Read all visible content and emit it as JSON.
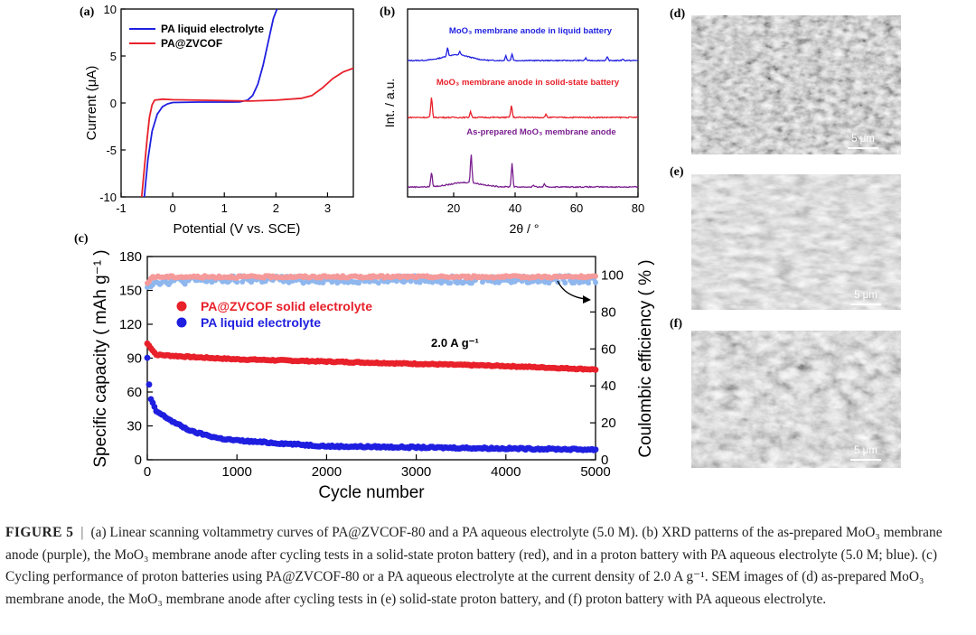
{
  "panels": {
    "a": {
      "letter": "(a)",
      "legend": [
        "PA liquid electrolyte",
        "PA@ZVCOF"
      ],
      "xlabel": "Potential (V vs. SCE)",
      "ylabel": "Current (μA)",
      "xticks": [
        "-1",
        "0",
        "1",
        "2",
        "3"
      ],
      "yticks": [
        "10",
        "5",
        "0",
        "-5",
        "-10"
      ]
    },
    "b": {
      "letter": "(b)",
      "ylabel": "Int. / a.u.",
      "xlabel": "2θ / °",
      "xticks": [
        "20",
        "40",
        "60",
        "80"
      ],
      "labels": [
        "MoO₃ membrane anode in liquid battery",
        "MoO₃ membrane anode in solid-state battery",
        "As-prepared MoO₃ membrane anode"
      ]
    },
    "c": {
      "letter": "(c)",
      "xlabel": "Cycle number",
      "ylabel_left": "Specific capacity ( mAh g⁻¹ )",
      "ylabel_right": "Coulombic efficiency ( % )",
      "legend": [
        "PA@ZVCOF solid electrolyte",
        "PA liquid electrolyte"
      ],
      "annotation": "2.0 A g⁻¹",
      "xticks": [
        "0",
        "1000",
        "2000",
        "3000",
        "4000",
        "5000"
      ],
      "yticks_left": [
        "0",
        "30",
        "60",
        "90",
        "120",
        "150",
        "180"
      ],
      "yticks_right": [
        "0",
        "20",
        "40",
        "60",
        "80",
        "100"
      ]
    },
    "d": {
      "letter": "(d)",
      "scale": "5 μm"
    },
    "e": {
      "letter": "(e)",
      "scale": "5 μm"
    },
    "f": {
      "letter": "(f)",
      "scale": "5 μm"
    }
  },
  "colors": {
    "blue": "#1f1fe0",
    "red": "#e8202a",
    "purple": "#7a1f8f",
    "pink": "#f59a9a",
    "lightblue": "#8fb7ee"
  },
  "caption": {
    "label": "FIGURE 5",
    "sep": "|",
    "text": "(a) Linear scanning voltammetry curves of PA@ZVCOF-80 and a PA aqueous electrolyte (5.0 M). (b) XRD patterns of the as-prepared MoO₃ membrane anode (purple), the MoO₃ membrane anode after cycling tests in a solid-state proton battery (red), and in a proton battery with PA aqueous electrolyte (5.0 M; blue). (c) Cycling performance of proton batteries using PA@ZVCOF-80 or a PA aqueous electrolyte at the current density of 2.0 A g⁻¹. SEM images of (d) as-prepared MoO₃ membrane anode, the MoO₃ membrane anode after cycling tests in (e) solid-state proton battery, and (f) proton battery with PA aqueous electrolyte."
  },
  "chart_data": [
    {
      "type": "line",
      "panel": "a",
      "title": "",
      "xlabel": "Potential (V vs. SCE)",
      "ylabel": "Current (μA)",
      "xlim": [
        -1,
        3.5
      ],
      "ylim": [
        -10,
        10
      ],
      "series": [
        {
          "name": "PA liquid electrolyte",
          "color": "#1f1fe0",
          "x": [
            -0.55,
            -0.48,
            -0.4,
            -0.3,
            -0.2,
            -0.1,
            0.0,
            0.5,
            1.0,
            1.3,
            1.45,
            1.55,
            1.65,
            1.75,
            1.85,
            1.95,
            2.02
          ],
          "y": [
            -10,
            -6,
            -3,
            -1.2,
            -0.4,
            -0.1,
            0.05,
            0.1,
            0.1,
            0.12,
            0.3,
            0.8,
            2.0,
            4.0,
            6.5,
            9.0,
            10
          ]
        },
        {
          "name": "PA@ZVCOF",
          "color": "#e8202a",
          "x": [
            -0.6,
            -0.55,
            -0.5,
            -0.45,
            -0.4,
            -0.35,
            -0.2,
            0.0,
            0.5,
            1.0,
            1.5,
            2.0,
            2.5,
            2.7,
            2.9,
            3.1,
            3.3,
            3.5
          ],
          "y": [
            -10,
            -7,
            -4,
            -1.5,
            -0.2,
            0.3,
            0.4,
            0.35,
            0.3,
            0.25,
            0.2,
            0.3,
            0.5,
            0.8,
            1.6,
            2.6,
            3.3,
            3.7
          ]
        }
      ]
    },
    {
      "type": "line",
      "panel": "b",
      "xlabel": "2θ / °",
      "ylabel": "Int. / a.u.",
      "xlim": [
        5,
        80
      ],
      "series": [
        {
          "name": "MoO₃ membrane anode in liquid battery",
          "color": "#1f1fe0",
          "peaks": [
            [
              18,
              0.5
            ],
            [
              22,
              0.2
            ],
            [
              37,
              0.3
            ],
            [
              39,
              0.4
            ],
            [
              63,
              0.15
            ],
            [
              70,
              0.2
            ],
            [
              75,
              0.1
            ]
          ]
        },
        {
          "name": "MoO₃ membrane anode in solid-state battery",
          "color": "#e8202a",
          "peaks": [
            [
              12.8,
              1.0
            ],
            [
              25.5,
              0.3
            ],
            [
              38.8,
              0.6
            ],
            [
              50,
              0.15
            ]
          ]
        },
        {
          "name": "As-prepared MoO₃ membrane anode",
          "color": "#7a1f8f",
          "peaks": [
            [
              12.8,
              0.8
            ],
            [
              25.7,
              1.6
            ],
            [
              39,
              1.3
            ],
            [
              46,
              0.1
            ],
            [
              49.5,
              0.15
            ]
          ]
        }
      ]
    },
    {
      "type": "scatter",
      "panel": "c",
      "xlabel": "Cycle number",
      "ylabel": "Specific capacity ( mAh g⁻¹ )",
      "ylabel_right": "Coulombic efficiency ( % )",
      "xlim": [
        0,
        5000
      ],
      "ylim": [
        0,
        180
      ],
      "ylim_right": [
        0,
        110
      ],
      "series": [
        {
          "name": "PA@ZVCOF solid electrolyte",
          "axis": "left",
          "color": "#e8202a",
          "x": [
            0,
            100,
            500,
            1000,
            2000,
            3000,
            4000,
            5000
          ],
          "y": [
            103,
            93,
            91,
            89,
            87,
            85,
            83,
            80
          ]
        },
        {
          "name": "PA liquid electrolyte",
          "axis": "left",
          "color": "#1f1fe0",
          "x": [
            0,
            30,
            100,
            300,
            500,
            800,
            1000,
            2000,
            3000,
            4000,
            5000
          ],
          "y": [
            90,
            55,
            43,
            33,
            25,
            19,
            17,
            12,
            11,
            10,
            9
          ]
        },
        {
          "name": "PA@ZVCOF coulombic efficiency",
          "axis": "right",
          "color": "#f59a9a",
          "x": [
            0,
            50,
            100,
            1000,
            2000,
            3000,
            4000,
            5000
          ],
          "y": [
            95,
            99,
            99,
            99,
            99,
            99,
            99,
            99
          ]
        },
        {
          "name": "PA liquid coulombic efficiency",
          "axis": "right",
          "color": "#8fb7ee",
          "x": [
            0,
            100,
            1000,
            2000,
            3000,
            4000,
            5000
          ],
          "y": [
            95,
            97,
            98,
            98,
            98,
            98,
            98
          ]
        }
      ]
    }
  ]
}
